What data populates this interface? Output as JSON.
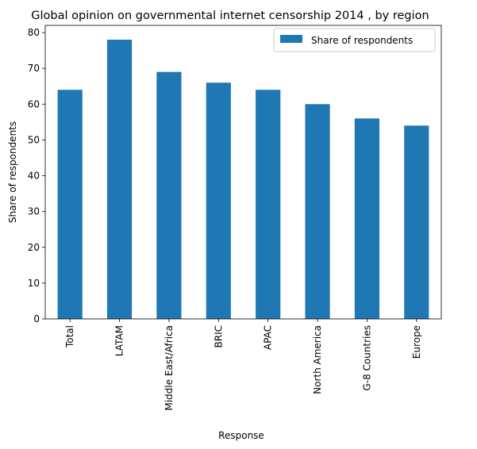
{
  "chart_data": {
    "type": "bar",
    "title": "Global opinion on governmental internet censorship 2014 , by region",
    "xlabel": "Response",
    "ylabel": "Share of respondents",
    "categories": [
      "Total",
      "LATAM",
      "Middle East/Africa",
      "BRIC",
      "APAC",
      "North America",
      "G-8 Countries",
      "Europe"
    ],
    "series": [
      {
        "name": "Share of respondents",
        "values": [
          64,
          78,
          69,
          66,
          64,
          60,
          56,
          54
        ],
        "color": "#1f77b4"
      }
    ],
    "ylim": [
      0,
      82
    ],
    "yticks": [
      0,
      10,
      20,
      30,
      40,
      50,
      60,
      70,
      80
    ],
    "legend": "top-right",
    "grid": false
  }
}
